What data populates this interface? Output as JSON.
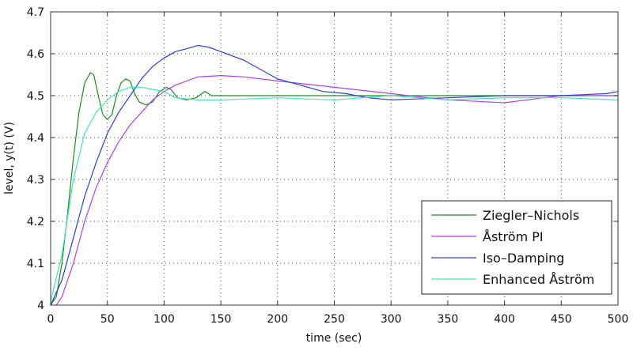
{
  "chart_data": {
    "type": "line",
    "title": "",
    "xlabel": "time (sec)",
    "ylabel": "level, y(t) (V)",
    "xlim": [
      0,
      500
    ],
    "ylim": [
      4,
      4.7
    ],
    "xticks": [
      0,
      50,
      100,
      150,
      200,
      250,
      300,
      350,
      400,
      450,
      500
    ],
    "yticks": [
      4,
      4.1,
      4.2,
      4.3,
      4.4,
      4.5,
      4.6,
      4.7
    ],
    "xtick_labels": [
      "0",
      "50",
      "100",
      "150",
      "200",
      "250",
      "300",
      "350",
      "400",
      "450",
      "500"
    ],
    "ytick_labels": [
      "4",
      "4.1",
      "4.2",
      "4.3",
      "4.4",
      "4.5",
      "4.6",
      "4.7"
    ],
    "grid": true,
    "legend_position": "bottom-right",
    "series": [
      {
        "name": "Ziegler–Nichols",
        "color": "#1e8c1e",
        "points": [
          [
            0,
            4.0
          ],
          [
            5,
            4.02
          ],
          [
            10,
            4.1
          ],
          [
            15,
            4.22
          ],
          [
            20,
            4.35
          ],
          [
            25,
            4.46
          ],
          [
            30,
            4.53
          ],
          [
            35,
            4.555
          ],
          [
            38,
            4.55
          ],
          [
            42,
            4.5
          ],
          [
            46,
            4.455
          ],
          [
            50,
            4.443
          ],
          [
            54,
            4.455
          ],
          [
            58,
            4.5
          ],
          [
            62,
            4.53
          ],
          [
            66,
            4.54
          ],
          [
            70,
            4.535
          ],
          [
            74,
            4.505
          ],
          [
            78,
            4.485
          ],
          [
            84,
            4.478
          ],
          [
            90,
            4.485
          ],
          [
            96,
            4.51
          ],
          [
            102,
            4.52
          ],
          [
            106,
            4.515
          ],
          [
            112,
            4.495
          ],
          [
            120,
            4.49
          ],
          [
            128,
            4.495
          ],
          [
            136,
            4.51
          ],
          [
            142,
            4.5
          ],
          [
            160,
            4.5
          ],
          [
            200,
            4.5
          ],
          [
            250,
            4.5
          ],
          [
            300,
            4.5
          ],
          [
            350,
            4.5
          ],
          [
            400,
            4.5
          ],
          [
            450,
            4.5
          ],
          [
            500,
            4.5
          ]
        ]
      },
      {
        "name": "Åström PI",
        "color": "#b23fe8",
        "points": [
          [
            5,
            4.0
          ],
          [
            10,
            4.02
          ],
          [
            20,
            4.1
          ],
          [
            30,
            4.2
          ],
          [
            40,
            4.28
          ],
          [
            50,
            4.34
          ],
          [
            60,
            4.39
          ],
          [
            70,
            4.43
          ],
          [
            80,
            4.46
          ],
          [
            90,
            4.49
          ],
          [
            100,
            4.51
          ],
          [
            110,
            4.525
          ],
          [
            120,
            4.535
          ],
          [
            130,
            4.545
          ],
          [
            150,
            4.548
          ],
          [
            170,
            4.545
          ],
          [
            200,
            4.535
          ],
          [
            250,
            4.52
          ],
          [
            300,
            4.505
          ],
          [
            350,
            4.49
          ],
          [
            400,
            4.483
          ],
          [
            420,
            4.49
          ],
          [
            450,
            4.5
          ],
          [
            500,
            4.5
          ]
        ]
      },
      {
        "name": "Iso–Damping",
        "color": "#2a3fd6",
        "points": [
          [
            0,
            4.0
          ],
          [
            10,
            4.06
          ],
          [
            20,
            4.16
          ],
          [
            30,
            4.26
          ],
          [
            40,
            4.34
          ],
          [
            50,
            4.41
          ],
          [
            60,
            4.46
          ],
          [
            70,
            4.5
          ],
          [
            80,
            4.54
          ],
          [
            90,
            4.57
          ],
          [
            100,
            4.59
          ],
          [
            110,
            4.605
          ],
          [
            120,
            4.612
          ],
          [
            130,
            4.62
          ],
          [
            140,
            4.615
          ],
          [
            150,
            4.605
          ],
          [
            160,
            4.595
          ],
          [
            170,
            4.585
          ],
          [
            180,
            4.57
          ],
          [
            190,
            4.555
          ],
          [
            200,
            4.54
          ],
          [
            220,
            4.525
          ],
          [
            240,
            4.51
          ],
          [
            260,
            4.505
          ],
          [
            280,
            4.495
          ],
          [
            300,
            4.49
          ],
          [
            350,
            4.495
          ],
          [
            400,
            4.5
          ],
          [
            450,
            4.5
          ],
          [
            490,
            4.505
          ],
          [
            500,
            4.51
          ]
        ]
      },
      {
        "name": "Enhanced Åström",
        "color": "#3de8b8",
        "points": [
          [
            0,
            4.01
          ],
          [
            10,
            4.12
          ],
          [
            20,
            4.3
          ],
          [
            30,
            4.41
          ],
          [
            40,
            4.46
          ],
          [
            50,
            4.49
          ],
          [
            60,
            4.51
          ],
          [
            70,
            4.52
          ],
          [
            80,
            4.52
          ],
          [
            90,
            4.515
          ],
          [
            100,
            4.51
          ],
          [
            110,
            4.495
          ],
          [
            130,
            4.49
          ],
          [
            150,
            4.49
          ],
          [
            200,
            4.495
          ],
          [
            250,
            4.49
          ],
          [
            300,
            4.5
          ],
          [
            350,
            4.49
          ],
          [
            400,
            4.495
          ],
          [
            450,
            4.495
          ],
          [
            500,
            4.49
          ]
        ]
      }
    ]
  }
}
